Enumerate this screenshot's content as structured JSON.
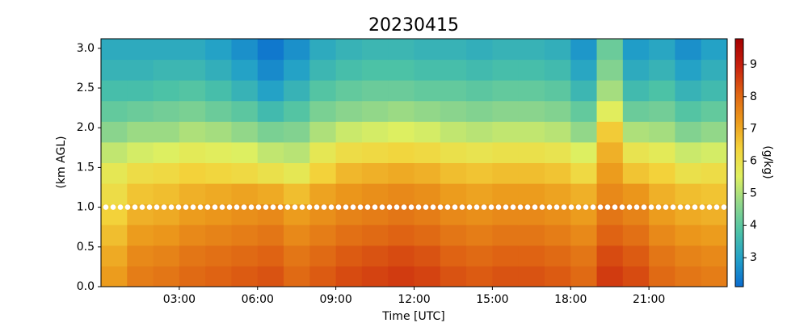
{
  "chart_data": {
    "type": "heatmap",
    "title": "20230415",
    "x_label": "Time [UTC]",
    "y_label": "(km AGL)",
    "colorbar_label": "(g/kg)",
    "x_edges": [
      0,
      1,
      2,
      3,
      4,
      5,
      6,
      7,
      8,
      9,
      10,
      11,
      12,
      13,
      14,
      15,
      16,
      17,
      18,
      19,
      20,
      21,
      22,
      23,
      24
    ],
    "y_edges": [
      0,
      0.26,
      0.52,
      0.78,
      1.04,
      1.3,
      1.56,
      1.82,
      2.08,
      2.34,
      2.6,
      2.86,
      3.12
    ],
    "z": [
      [
        7.2,
        7.7,
        7.8,
        8.0,
        8.1,
        8.2,
        8.3,
        8.0,
        8.2,
        8.4,
        8.5,
        8.6,
        8.5,
        8.3,
        8.2,
        8.3,
        8.3,
        8.2,
        8.0,
        8.6,
        8.4,
        8.0,
        7.8,
        7.7
      ],
      [
        7.0,
        7.5,
        7.6,
        7.8,
        7.9,
        8.0,
        8.1,
        7.8,
        8.0,
        8.2,
        8.3,
        8.4,
        8.3,
        8.1,
        8.0,
        8.1,
        8.1,
        8.0,
        7.8,
        8.4,
        8.2,
        7.8,
        7.6,
        7.5
      ],
      [
        6.7,
        7.2,
        7.3,
        7.5,
        7.6,
        7.7,
        7.8,
        7.5,
        7.7,
        7.9,
        8.0,
        8.1,
        8.0,
        7.8,
        7.7,
        7.8,
        7.8,
        7.7,
        7.5,
        8.1,
        7.9,
        7.5,
        7.3,
        7.2
      ],
      [
        6.4,
        6.9,
        7.0,
        7.2,
        7.3,
        7.4,
        7.5,
        7.2,
        7.4,
        7.6,
        7.7,
        7.8,
        7.7,
        7.5,
        7.4,
        7.5,
        7.5,
        7.4,
        7.2,
        7.8,
        7.6,
        7.2,
        7.0,
        6.9
      ],
      [
        6.1,
        6.6,
        6.7,
        6.9,
        7.0,
        7.1,
        7.0,
        6.7,
        7.1,
        7.3,
        7.4,
        7.5,
        7.4,
        7.2,
        7.1,
        7.2,
        7.2,
        7.1,
        6.9,
        7.5,
        7.3,
        6.9,
        6.7,
        6.6
      ],
      [
        5.8,
        6.1,
        6.2,
        6.4,
        6.3,
        6.2,
        6.0,
        5.8,
        6.4,
        6.8,
        6.9,
        7.0,
        6.9,
        6.7,
        6.6,
        6.7,
        6.7,
        6.6,
        6.2,
        7.2,
        6.6,
        6.4,
        6.0,
        6.1
      ],
      [
        5.2,
        5.4,
        5.5,
        5.7,
        5.6,
        5.5,
        5.2,
        5.1,
        5.8,
        6.1,
        6.2,
        6.3,
        6.2,
        6.0,
        5.9,
        6.0,
        6.0,
        5.9,
        5.5,
        6.9,
        5.9,
        5.7,
        5.3,
        5.4
      ],
      [
        4.6,
        4.8,
        4.8,
        5.0,
        4.9,
        4.7,
        4.4,
        4.5,
        5.0,
        5.3,
        5.4,
        5.5,
        5.4,
        5.2,
        5.1,
        5.2,
        5.2,
        5.1,
        4.7,
        6.5,
        5.0,
        4.9,
        4.5,
        4.7
      ],
      [
        4.1,
        4.2,
        4.3,
        4.4,
        4.2,
        4.0,
        3.6,
        3.9,
        4.4,
        4.6,
        4.7,
        4.8,
        4.7,
        4.6,
        4.5,
        4.6,
        4.6,
        4.5,
        4.1,
        5.6,
        4.2,
        4.3,
        3.9,
        4.1
      ],
      [
        3.7,
        3.7,
        3.8,
        3.9,
        3.7,
        3.4,
        3.0,
        3.4,
        3.9,
        4.1,
        4.2,
        4.2,
        4.1,
        4.1,
        4.0,
        4.1,
        4.1,
        4.0,
        3.5,
        4.9,
        3.6,
        3.8,
        3.4,
        3.6
      ],
      [
        3.4,
        3.4,
        3.5,
        3.5,
        3.3,
        3.0,
        2.6,
        3.0,
        3.5,
        3.7,
        3.8,
        3.8,
        3.7,
        3.7,
        3.6,
        3.7,
        3.7,
        3.6,
        3.1,
        4.5,
        3.2,
        3.4,
        3.0,
        3.3
      ],
      [
        3.2,
        3.2,
        3.2,
        3.2,
        3.0,
        2.7,
        2.3,
        2.7,
        3.2,
        3.4,
        3.5,
        3.5,
        3.4,
        3.4,
        3.3,
        3.4,
        3.4,
        3.3,
        2.8,
        4.2,
        2.9,
        3.1,
        2.7,
        3.0
      ]
    ],
    "xlim": [
      0,
      24
    ],
    "xticks": [
      {
        "value": 3,
        "label": "03:00"
      },
      {
        "value": 6,
        "label": "06:00"
      },
      {
        "value": 9,
        "label": "09:00"
      },
      {
        "value": 12,
        "label": "12:00"
      },
      {
        "value": 15,
        "label": "15:00"
      },
      {
        "value": 18,
        "label": "18:00"
      },
      {
        "value": 21,
        "label": "21:00"
      }
    ],
    "ylim": [
      0,
      3.12
    ],
    "yticks": [
      {
        "value": 0,
        "label": "0.0"
      },
      {
        "value": 0.5,
        "label": "0.5"
      },
      {
        "value": 1,
        "label": "1.0"
      },
      {
        "value": 1.5,
        "label": "1.5"
      },
      {
        "value": 2,
        "label": "2.0"
      },
      {
        "value": 2.5,
        "label": "2.5"
      },
      {
        "value": 3,
        "label": "3.0"
      }
    ],
    "clim": [
      2.1,
      9.8
    ],
    "cticks": [
      3,
      4,
      5,
      6,
      7,
      8,
      9
    ],
    "colormap": [
      "#0a6ccf",
      "#22a0c8",
      "#4dc2a6",
      "#8fd68b",
      "#dff060",
      "#f3d33b",
      "#ec9a1c",
      "#df6413",
      "#c8200e",
      "#a50000"
    ],
    "marker_line": {
      "y": 1,
      "color": "#ffffff"
    }
  }
}
